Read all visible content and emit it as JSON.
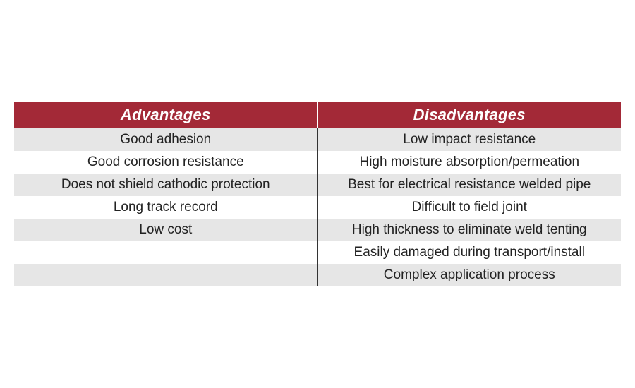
{
  "table": {
    "header_bg": "#a32937",
    "header_color": "#ffffff",
    "row_even_bg": "#e6e6e6",
    "row_odd_bg": "#ffffff",
    "cell_color": "#222222",
    "columns": [
      {
        "label": "Advantages"
      },
      {
        "label": "Disadvantages"
      }
    ],
    "rows": [
      {
        "left": "Good adhesion",
        "right": "Low impact resistance"
      },
      {
        "left": "Good corrosion resistance",
        "right": "High moisture absorption/permeation"
      },
      {
        "left": "Does not shield cathodic protection",
        "right": "Best for electrical resistance welded pipe"
      },
      {
        "left": "Long track record",
        "right": "Difficult to field joint"
      },
      {
        "left": "Low cost",
        "right": "High thickness to eliminate weld tenting"
      },
      {
        "left": "",
        "right": "Easily damaged during transport/install"
      },
      {
        "left": "",
        "right": "Complex application process"
      }
    ]
  }
}
